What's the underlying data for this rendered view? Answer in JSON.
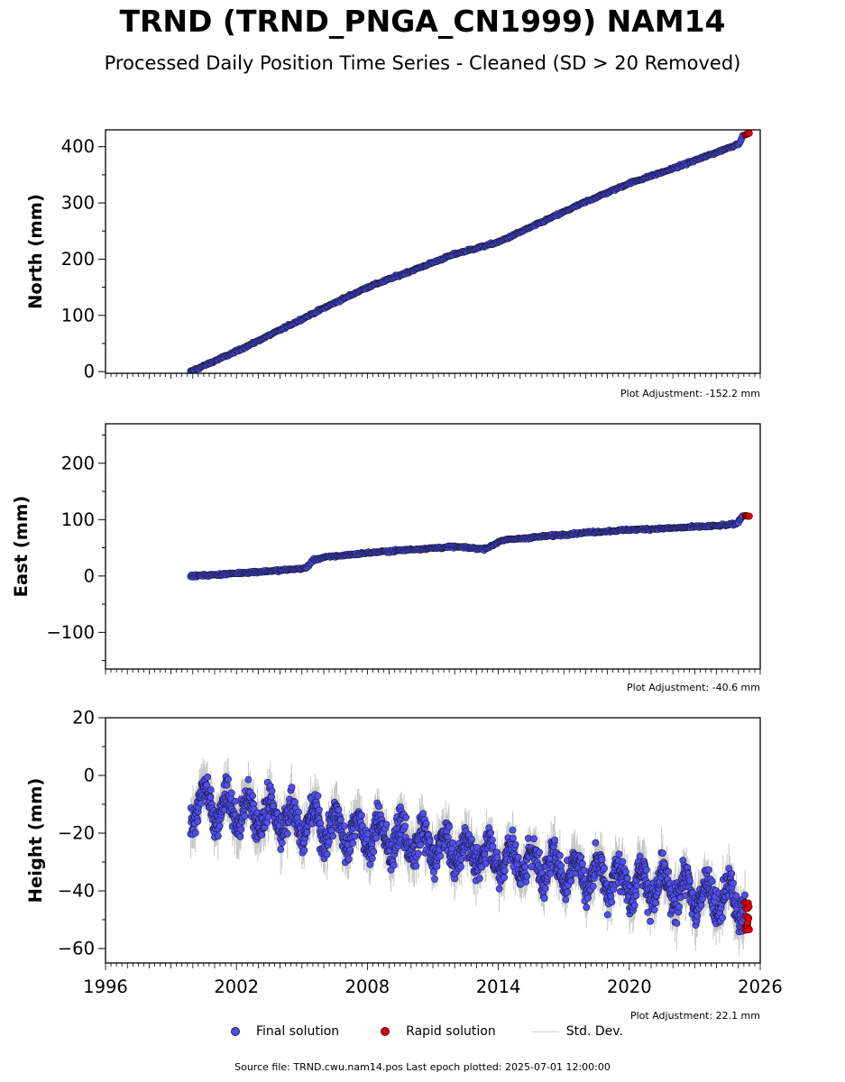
{
  "title": "TRND (TRND_PNGA_CN1999) NAM14",
  "subtitle": "Processed Daily Position Time Series - Cleaned (SD > 20 Removed)",
  "legend": {
    "final": "Final solution",
    "rapid": "Rapid solution",
    "std": "Std. Dev."
  },
  "footer": "Source file: TRND.cwu.nam14.pos  Last epoch plotted: 2025-07-01 12:00:00",
  "colors": {
    "final": "#4f4ff0",
    "rapid": "#e00000",
    "std": "#9a9a9a",
    "edge": "#1a1a40"
  },
  "chart_data": [
    {
      "type": "scatter",
      "ylabel": "North (mm)",
      "adjustment": "Plot Adjustment: -152.2 mm",
      "xlim": [
        1996,
        2026
      ],
      "ylim": [
        -3,
        430
      ],
      "yticks": [
        0,
        100,
        200,
        300,
        400
      ],
      "xticks": [],
      "series": [
        {
          "kind": "final",
          "x": [
            1999.9,
            2002,
            2004,
            2006,
            2008,
            2010,
            2012,
            2013.8,
            2014.1,
            2016,
            2018,
            2020,
            2022,
            2024,
            2025,
            2025.2
          ],
          "values": [
            0,
            36,
            74,
            113,
            150,
            179,
            209,
            228,
            232,
            266,
            302,
            335,
            361,
            390,
            405,
            418
          ]
        },
        {
          "kind": "rapid",
          "x": [
            2025.3,
            2025.5
          ],
          "values": [
            421,
            424
          ]
        }
      ]
    },
    {
      "type": "scatter",
      "ylabel": "East (mm)",
      "adjustment": "Plot Adjustment: -40.6 mm",
      "xlim": [
        1996,
        2026
      ],
      "ylim": [
        -165,
        270
      ],
      "yticks": [
        -100,
        0,
        100,
        200
      ],
      "xticks": [],
      "series": [
        {
          "kind": "final",
          "x": [
            1999.9,
            2001,
            2002,
            2004,
            2005.2,
            2005.5,
            2006,
            2008,
            2010,
            2012,
            2013.3,
            2013.7,
            2014.1,
            2016,
            2018,
            2020,
            2022,
            2024,
            2024.9,
            2025.2
          ],
          "values": [
            0,
            2,
            5,
            10,
            14,
            28,
            33,
            41,
            47,
            52,
            48,
            53,
            63,
            70,
            77,
            82,
            85,
            89,
            92,
            106
          ]
        },
        {
          "kind": "rapid",
          "x": [
            2025.3,
            2025.5
          ],
          "values": [
            107,
            106
          ]
        }
      ]
    },
    {
      "type": "scatter",
      "ylabel": "Height (mm)",
      "adjustment": "Plot Adjustment: 22.1 mm",
      "xlim": [
        1996,
        2026
      ],
      "ylim": [
        -65,
        20
      ],
      "yticks": [
        -60,
        -40,
        -20,
        0,
        20
      ],
      "xticks": [
        1996,
        2002,
        2008,
        2014,
        2020,
        2026
      ],
      "trend": {
        "x": [
          1999.9,
          2025.3
        ],
        "values": [
          -9,
          -44
        ]
      },
      "series": [
        {
          "kind": "final",
          "x": [
            1999.9,
            2025.3
          ],
          "values": [
            -9,
            -44
          ]
        },
        {
          "kind": "rapid",
          "x": [
            2025.3,
            2025.5
          ],
          "values": [
            -44,
            -56
          ]
        }
      ]
    }
  ]
}
